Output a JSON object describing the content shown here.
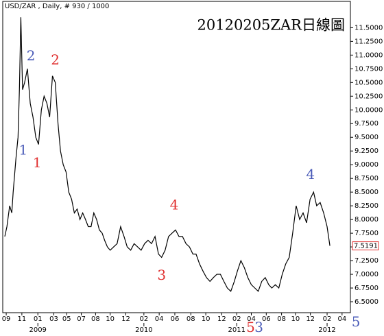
{
  "chart_data": {
    "type": "line",
    "header": "USD/ZAR , Daily, # 930 / 1000",
    "title": "20120205ZAR日線圖",
    "x": [
      6,
      12,
      20,
      26,
      30,
      38,
      44,
      48,
      52,
      57,
      63,
      71,
      79,
      87,
      95,
      103,
      111,
      119,
      127,
      135,
      143,
      151,
      159,
      166,
      174,
      182,
      190,
      198,
      206,
      214,
      222,
      230,
      238,
      246,
      254,
      262,
      270,
      278,
      286,
      293,
      301,
      309,
      319,
      329,
      339,
      349,
      358,
      368,
      378,
      388,
      398,
      408,
      418,
      428,
      438,
      448,
      457,
      467,
      477,
      487,
      497,
      507,
      517,
      527,
      537,
      547,
      556,
      566,
      576,
      586,
      596,
      606,
      616,
      626,
      636,
      646,
      656,
      666,
      675,
      685,
      695,
      705,
      715,
      725,
      735,
      745,
      755,
      765,
      774,
      784,
      794,
      804,
      814,
      824,
      834,
      844,
      854,
      864,
      874,
      884,
      894,
      903,
      913,
      923,
      933,
      941
    ],
    "series": [
      {
        "name": "USD/ZAR",
        "color": "#000000",
        "values": [
          7.69,
          7.87,
          8.25,
          8.12,
          8.5,
          9.12,
          9.5,
          10.37,
          11.69,
          10.37,
          10.5,
          10.75,
          10.12,
          9.87,
          9.5,
          9.37,
          10.0,
          10.25,
          10.12,
          9.87,
          10.62,
          10.5,
          9.75,
          9.25,
          9.0,
          8.87,
          8.5,
          8.37,
          8.12,
          8.19,
          8.0,
          8.12,
          8.0,
          7.87,
          7.87,
          8.12,
          8.0,
          7.81,
          7.75,
          7.62,
          7.5,
          7.44,
          7.5,
          7.56,
          7.87,
          7.69,
          7.5,
          7.44,
          7.56,
          7.5,
          7.44,
          7.56,
          7.62,
          7.56,
          7.69,
          7.37,
          7.31,
          7.44,
          7.69,
          7.75,
          7.81,
          7.69,
          7.69,
          7.56,
          7.5,
          7.37,
          7.37,
          7.19,
          7.06,
          6.94,
          6.87,
          6.94,
          7.0,
          7.0,
          6.87,
          6.75,
          6.69,
          6.87,
          7.06,
          7.25,
          7.12,
          6.94,
          6.81,
          6.75,
          6.69,
          6.87,
          6.94,
          6.81,
          6.75,
          6.81,
          6.75,
          7.0,
          7.19,
          7.31,
          7.75,
          8.25,
          8.0,
          8.12,
          7.94,
          8.37,
          8.5,
          8.25,
          8.31,
          8.12,
          7.87,
          7.52
        ]
      }
    ],
    "last_price": 7.5191,
    "xlim": [
      0,
      1000
    ],
    "ylim": [
      6.3,
      11.98
    ],
    "xticks": [
      {
        "value": 10,
        "label": "09"
      },
      {
        "value": 55,
        "label": "11"
      },
      {
        "value": 101,
        "label": "01"
      },
      {
        "value": 147,
        "label": "03"
      },
      {
        "value": 184,
        "label": "05"
      },
      {
        "value": 226,
        "label": "07"
      },
      {
        "value": 267,
        "label": "08"
      },
      {
        "value": 309,
        "label": "10"
      },
      {
        "value": 354,
        "label": "12"
      },
      {
        "value": 406,
        "label": "02"
      },
      {
        "value": 450,
        "label": "04"
      },
      {
        "value": 495,
        "label": "06"
      },
      {
        "value": 541,
        "label": "08"
      },
      {
        "value": 584,
        "label": "10"
      },
      {
        "value": 630,
        "label": "12"
      },
      {
        "value": 673,
        "label": "02"
      },
      {
        "value": 715,
        "label": "04"
      },
      {
        "value": 758,
        "label": "06"
      },
      {
        "value": 802,
        "label": "08"
      },
      {
        "value": 842,
        "label": "10"
      },
      {
        "value": 885,
        "label": "12"
      },
      {
        "value": 933,
        "label": "02"
      },
      {
        "value": 976,
        "label": "04"
      }
    ],
    "year_labels": [
      {
        "value": 101,
        "label": "2009"
      },
      {
        "value": 406,
        "label": "2010"
      },
      {
        "value": 673,
        "label": "2011"
      },
      {
        "value": 933,
        "label": "2012"
      }
    ],
    "yticks": [
      {
        "value": 11.5,
        "label": "11.5000"
      },
      {
        "value": 11.25,
        "label": "11.2500"
      },
      {
        "value": 11.0,
        "label": "11.0000"
      },
      {
        "value": 10.75,
        "label": "10.7500"
      },
      {
        "value": 10.5,
        "label": "10.5000"
      },
      {
        "value": 10.25,
        "label": "10.2500"
      },
      {
        "value": 10.0,
        "label": "10.0000"
      },
      {
        "value": 9.75,
        "label": "9.7500"
      },
      {
        "value": 9.5,
        "label": "9.5000"
      },
      {
        "value": 9.25,
        "label": "9.2500"
      },
      {
        "value": 9.0,
        "label": "9.0000"
      },
      {
        "value": 8.75,
        "label": "8.7500"
      },
      {
        "value": 8.5,
        "label": "8.5000"
      },
      {
        "value": 8.25,
        "label": "8.2500"
      },
      {
        "value": 8.0,
        "label": "8.0000"
      },
      {
        "value": 7.75,
        "label": "7.7500"
      },
      {
        "value": 7.5,
        "label": "7.5000"
      },
      {
        "value": 7.25,
        "label": "7.2500"
      },
      {
        "value": 7.0,
        "label": "7.0000"
      },
      {
        "value": 6.75,
        "label": "6.7500"
      },
      {
        "value": 6.5,
        "label": "6.5000"
      }
    ],
    "annotations": [
      {
        "text": "1",
        "color": "#4a5bb8",
        "x": 59,
        "y": 9.25
      },
      {
        "text": "2",
        "color": "#4a5bb8",
        "x": 81,
        "y": 10.97
      },
      {
        "text": "2",
        "color": "#e03030",
        "x": 151,
        "y": 10.9
      },
      {
        "text": "1",
        "color": "#e03030",
        "x": 99,
        "y": 9.02
      },
      {
        "text": "4",
        "color": "#e03030",
        "x": 493,
        "y": 8.25
      },
      {
        "text": "3",
        "color": "#e03030",
        "x": 457,
        "y": 6.97
      },
      {
        "text": "4",
        "color": "#4a5bb8",
        "x": 885,
        "y": 8.81
      },
      {
        "text": "5",
        "color": "#e03030",
        "x": 713,
        "y": 6.02
      },
      {
        "text": "3",
        "color": "#4a5bb8",
        "x": 737,
        "y": 6.02
      },
      {
        "text": "5",
        "color": "#4a5bb8",
        "x": 1016,
        "y": 6.12
      }
    ]
  }
}
